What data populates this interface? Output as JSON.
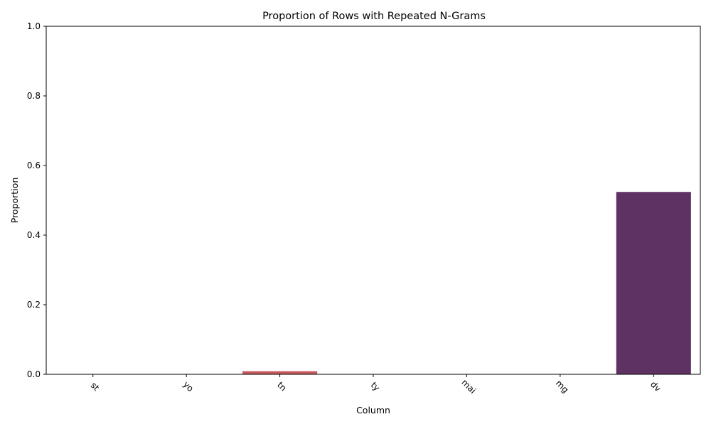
{
  "chart_data": {
    "type": "bar",
    "title": "Proportion of Rows with Repeated N-Grams",
    "xlabel": "Column",
    "ylabel": "Proportion",
    "categories": [
      "st",
      "yo",
      "tn",
      "ty",
      "mai",
      "mg",
      "dv"
    ],
    "values": [
      0.0,
      0.0,
      0.009,
      0.0,
      0.0,
      0.0,
      0.524
    ],
    "colors": [
      "#e6a07a",
      "#de7a65",
      "#c85a5e",
      "#ad4a5e",
      "#8f3e60",
      "#773461",
      "#5e3262"
    ],
    "ylim": [
      0,
      1
    ],
    "yticks": [
      "0.0",
      "0.2",
      "0.4",
      "0.6",
      "0.8",
      "1.0"
    ],
    "ytick_values": [
      0.0,
      0.2,
      0.4,
      0.6,
      0.8,
      1.0
    ],
    "grid": false,
    "xtick_rotation_deg": 45
  }
}
